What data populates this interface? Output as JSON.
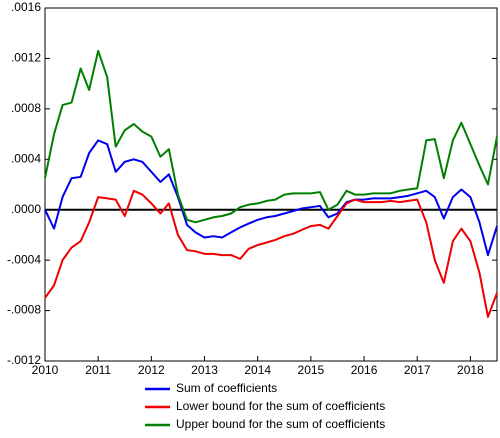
{
  "chart_data": {
    "type": "line",
    "x": [
      2010,
      2010.17,
      2010.33,
      2010.5,
      2010.67,
      2010.83,
      2011,
      2011.17,
      2011.33,
      2011.5,
      2011.67,
      2011.83,
      2012,
      2012.17,
      2012.33,
      2012.5,
      2012.67,
      2012.83,
      2013,
      2013.17,
      2013.33,
      2013.5,
      2013.67,
      2013.83,
      2014,
      2014.17,
      2014.33,
      2014.5,
      2014.67,
      2014.83,
      2015,
      2015.17,
      2015.33,
      2015.5,
      2015.67,
      2015.83,
      2016,
      2016.17,
      2016.33,
      2016.5,
      2016.67,
      2016.83,
      2017,
      2017.17,
      2017.33,
      2017.5,
      2017.67,
      2017.83,
      2018,
      2018.17,
      2018.33,
      2018.5
    ],
    "series": [
      {
        "name": "Sum of coefficients",
        "color": "#0000ee",
        "values": [
          0,
          -0.00015,
          0.0001,
          0.00025,
          0.00026,
          0.00045,
          0.00055,
          0.00052,
          0.0003,
          0.00038,
          0.0004,
          0.00038,
          0.0003,
          0.00022,
          0.00028,
          0.0001,
          -0.00012,
          -0.00018,
          -0.00022,
          -0.00021,
          -0.00022,
          -0.00018,
          -0.00014,
          -0.00011,
          -8e-05,
          -6e-05,
          -5e-05,
          -3e-05,
          -1e-05,
          1e-05,
          2e-05,
          3e-05,
          -6e-05,
          -3e-05,
          6e-05,
          8e-05,
          8e-05,
          9e-05,
          9e-05,
          9e-05,
          0.0001,
          0.00011,
          0.00013,
          0.00015,
          0.0001,
          -7e-05,
          0.0001,
          0.00016,
          0.0001,
          -0.0001,
          -0.00036,
          -0.00013
        ]
      },
      {
        "name": "Lower bound for the sum of coefficients",
        "color": "#ee0000",
        "values": [
          -0.0007,
          -0.0006,
          -0.0004,
          -0.0003,
          -0.00025,
          -0.0001,
          0.0001,
          9e-05,
          8e-05,
          -5e-05,
          0.00015,
          0.00012,
          5e-05,
          -3e-05,
          5e-05,
          -0.0002,
          -0.00032,
          -0.00033,
          -0.00035,
          -0.00035,
          -0.00036,
          -0.00036,
          -0.00039,
          -0.00031,
          -0.00028,
          -0.00026,
          -0.00024,
          -0.00021,
          -0.00019,
          -0.00016,
          -0.00013,
          -0.00012,
          -0.00015,
          -5e-05,
          5e-05,
          8e-05,
          6e-05,
          6e-05,
          6e-05,
          7e-05,
          6e-05,
          7e-05,
          8e-05,
          -0.0001,
          -0.0004,
          -0.00058,
          -0.00025,
          -0.00015,
          -0.00025,
          -0.0005,
          -0.00085,
          -0.00066
        ]
      },
      {
        "name": "Upper bound for the sum of coefficients",
        "color": "#008000",
        "values": [
          0.00025,
          0.0006,
          0.00083,
          0.00085,
          0.00112,
          0.00095,
          0.00126,
          0.00105,
          0.0005,
          0.00063,
          0.00068,
          0.00062,
          0.00058,
          0.00042,
          0.00048,
          0.00012,
          -8e-05,
          -0.0001,
          -8e-05,
          -6e-05,
          -5e-05,
          -3e-05,
          2e-05,
          4e-05,
          5e-05,
          7e-05,
          8e-05,
          0.00012,
          0.00013,
          0.00013,
          0.00013,
          0.00014,
          0,
          4e-05,
          0.00015,
          0.00012,
          0.00012,
          0.00013,
          0.00013,
          0.00013,
          0.00015,
          0.00016,
          0.00017,
          0.00055,
          0.00056,
          0.00025,
          0.00055,
          0.00069,
          0.00052,
          0.00035,
          0.0002,
          0.00058
        ]
      }
    ],
    "xlim": [
      2010,
      2018.5
    ],
    "xticks": [
      2010,
      2011,
      2012,
      2013,
      2014,
      2015,
      2016,
      2017,
      2018
    ],
    "ylim": [
      -0.0012,
      0.0016
    ],
    "yticks": [
      {
        "value": -0.0012,
        "label": "-.0012"
      },
      {
        "value": -0.0008,
        "label": "-.0008"
      },
      {
        "value": -0.0004,
        "label": "-.0004"
      },
      {
        "value": 0,
        "label": ".0000"
      },
      {
        "value": 0.0004,
        "label": ".0004"
      },
      {
        "value": 0.0008,
        "label": ".0008"
      },
      {
        "value": 0.0012,
        "label": ".0012"
      },
      {
        "value": 0.0016,
        "label": ".0016"
      }
    ],
    "zero_line": true,
    "legend": "bottom"
  }
}
